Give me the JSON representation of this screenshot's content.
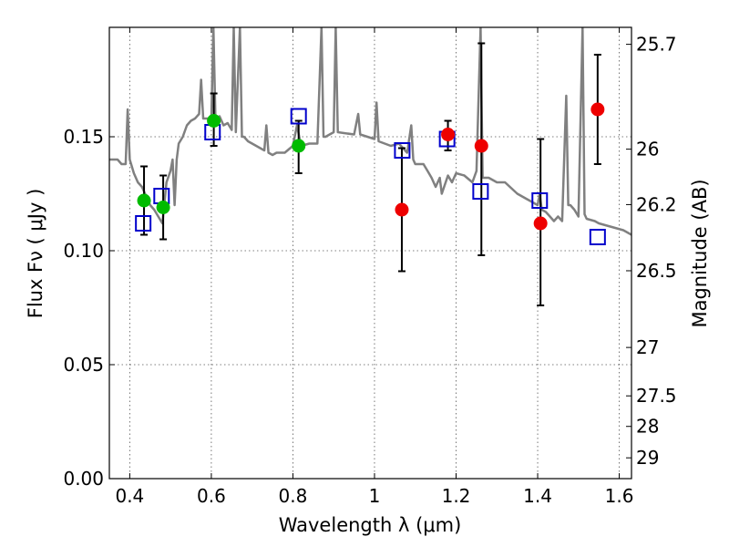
{
  "chart_data": {
    "type": "scatter",
    "xlabel": "Wavelength  λ (μm)",
    "ylabel": "Flux  Fν  ( μJy )",
    "ylabel_right": "Magnitude (AB)",
    "xlim": [
      0.35,
      1.63
    ],
    "ylim": [
      0.0,
      0.198
    ],
    "xticks": [
      {
        "value": 0.4,
        "label": "0.4"
      },
      {
        "value": 0.6,
        "label": "0.6"
      },
      {
        "value": 0.8,
        "label": "0.8"
      },
      {
        "value": 1.0,
        "label": "1"
      },
      {
        "value": 1.2,
        "label": "1.2"
      },
      {
        "value": 1.4,
        "label": "1.4"
      },
      {
        "value": 1.6,
        "label": "1.6"
      }
    ],
    "yticks": [
      {
        "value": 0.0,
        "label": "0.00"
      },
      {
        "value": 0.05,
        "label": "0.05"
      },
      {
        "value": 0.1,
        "label": "0.10"
      },
      {
        "value": 0.15,
        "label": "0.15"
      }
    ],
    "mag_ticks": [
      {
        "value": 25.7,
        "label": "25.7"
      },
      {
        "value": 26.0,
        "label": "26"
      },
      {
        "value": 26.2,
        "label": "26.2"
      },
      {
        "value": 26.5,
        "label": "26.5"
      },
      {
        "value": 27.0,
        "label": "27"
      },
      {
        "value": 27.5,
        "label": "27.5"
      },
      {
        "value": 28.0,
        "label": "28"
      },
      {
        "value": 29.0,
        "label": "29"
      }
    ],
    "grid": true,
    "colors": {
      "model": "#808080",
      "green_points": "#00bb00",
      "red_points": "#ee0000",
      "squares": "#0000cc",
      "errorbars": "#000000"
    },
    "series": [
      {
        "name": "observed-green",
        "marker": "circle",
        "points": [
          {
            "x": 0.435,
            "y": 0.122,
            "ylo": 0.107,
            "yhi": 0.137
          },
          {
            "x": 0.482,
            "y": 0.119,
            "ylo": 0.105,
            "yhi": 0.133
          },
          {
            "x": 0.606,
            "y": 0.157,
            "ylo": 0.146,
            "yhi": 0.169
          },
          {
            "x": 0.814,
            "y": 0.146,
            "ylo": 0.134,
            "yhi": 0.157
          }
        ]
      },
      {
        "name": "observed-red",
        "marker": "circle",
        "points": [
          {
            "x": 1.067,
            "y": 0.118,
            "ylo": 0.091,
            "yhi": 0.145
          },
          {
            "x": 1.18,
            "y": 0.151,
            "ylo": 0.144,
            "yhi": 0.157
          },
          {
            "x": 1.262,
            "y": 0.146,
            "ylo": 0.098,
            "yhi": 0.191
          },
          {
            "x": 1.407,
            "y": 0.112,
            "ylo": 0.076,
            "yhi": 0.149
          },
          {
            "x": 1.547,
            "y": 0.162,
            "ylo": 0.138,
            "yhi": 0.186
          }
        ]
      },
      {
        "name": "model-photometry",
        "marker": "square-open",
        "points": [
          {
            "x": 0.433,
            "y": 0.112
          },
          {
            "x": 0.478,
            "y": 0.124
          },
          {
            "x": 0.603,
            "y": 0.152
          },
          {
            "x": 0.814,
            "y": 0.159
          },
          {
            "x": 1.068,
            "y": 0.144
          },
          {
            "x": 1.178,
            "y": 0.149
          },
          {
            "x": 1.26,
            "y": 0.126
          },
          {
            "x": 1.405,
            "y": 0.122
          },
          {
            "x": 1.547,
            "y": 0.106
          }
        ]
      },
      {
        "name": "model-spectrum",
        "type": "line",
        "points": [
          [
            0.35,
            0.14
          ],
          [
            0.37,
            0.14
          ],
          [
            0.38,
            0.138
          ],
          [
            0.39,
            0.138
          ],
          [
            0.395,
            0.162
          ],
          [
            0.4,
            0.14
          ],
          [
            0.41,
            0.134
          ],
          [
            0.42,
            0.13
          ],
          [
            0.43,
            0.128
          ],
          [
            0.44,
            0.124
          ],
          [
            0.45,
            0.12
          ],
          [
            0.46,
            0.118
          ],
          [
            0.47,
            0.115
          ],
          [
            0.48,
            0.112
          ],
          [
            0.49,
            0.13
          ],
          [
            0.5,
            0.135
          ],
          [
            0.505,
            0.14
          ],
          [
            0.51,
            0.12
          ],
          [
            0.515,
            0.14
          ],
          [
            0.52,
            0.147
          ],
          [
            0.53,
            0.15
          ],
          [
            0.54,
            0.155
          ],
          [
            0.55,
            0.157
          ],
          [
            0.56,
            0.158
          ],
          [
            0.57,
            0.16
          ],
          [
            0.575,
            0.175
          ],
          [
            0.58,
            0.158
          ],
          [
            0.59,
            0.158
          ],
          [
            0.6,
            0.157
          ],
          [
            0.605,
            0.198
          ],
          [
            0.61,
            0.158
          ],
          [
            0.62,
            0.159
          ],
          [
            0.63,
            0.155
          ],
          [
            0.64,
            0.156
          ],
          [
            0.65,
            0.153
          ],
          [
            0.655,
            0.198
          ],
          [
            0.66,
            0.152
          ],
          [
            0.67,
            0.198
          ],
          [
            0.675,
            0.15
          ],
          [
            0.68,
            0.15
          ],
          [
            0.69,
            0.148
          ],
          [
            0.7,
            0.147
          ],
          [
            0.72,
            0.145
          ],
          [
            0.73,
            0.144
          ],
          [
            0.735,
            0.155
          ],
          [
            0.74,
            0.143
          ],
          [
            0.75,
            0.142
          ],
          [
            0.76,
            0.143
          ],
          [
            0.78,
            0.143
          ],
          [
            0.8,
            0.146
          ],
          [
            0.81,
            0.155
          ],
          [
            0.82,
            0.146
          ],
          [
            0.84,
            0.147
          ],
          [
            0.86,
            0.147
          ],
          [
            0.87,
            0.198
          ],
          [
            0.875,
            0.15
          ],
          [
            0.88,
            0.15
          ],
          [
            0.9,
            0.152
          ],
          [
            0.905,
            0.198
          ],
          [
            0.91,
            0.152
          ],
          [
            0.95,
            0.151
          ],
          [
            0.96,
            0.16
          ],
          [
            0.965,
            0.151
          ],
          [
            1.0,
            0.149
          ],
          [
            1.005,
            0.165
          ],
          [
            1.01,
            0.148
          ],
          [
            1.04,
            0.146
          ],
          [
            1.06,
            0.147
          ],
          [
            1.07,
            0.145
          ],
          [
            1.08,
            0.143
          ],
          [
            1.09,
            0.155
          ],
          [
            1.095,
            0.14
          ],
          [
            1.1,
            0.138
          ],
          [
            1.12,
            0.138
          ],
          [
            1.13,
            0.135
          ],
          [
            1.14,
            0.132
          ],
          [
            1.15,
            0.128
          ],
          [
            1.16,
            0.132
          ],
          [
            1.165,
            0.125
          ],
          [
            1.18,
            0.133
          ],
          [
            1.19,
            0.13
          ],
          [
            1.2,
            0.134
          ],
          [
            1.22,
            0.133
          ],
          [
            1.24,
            0.13
          ],
          [
            1.25,
            0.135
          ],
          [
            1.26,
            0.198
          ],
          [
            1.265,
            0.132
          ],
          [
            1.28,
            0.132
          ],
          [
            1.3,
            0.13
          ],
          [
            1.32,
            0.13
          ],
          [
            1.35,
            0.125
          ],
          [
            1.37,
            0.123
          ],
          [
            1.38,
            0.122
          ],
          [
            1.4,
            0.12
          ],
          [
            1.405,
            0.125
          ],
          [
            1.41,
            0.118
          ],
          [
            1.42,
            0.117
          ],
          [
            1.43,
            0.115
          ],
          [
            1.44,
            0.113
          ],
          [
            1.45,
            0.115
          ],
          [
            1.46,
            0.113
          ],
          [
            1.47,
            0.168
          ],
          [
            1.475,
            0.12
          ],
          [
            1.48,
            0.12
          ],
          [
            1.49,
            0.118
          ],
          [
            1.5,
            0.115
          ],
          [
            1.51,
            0.198
          ],
          [
            1.515,
            0.116
          ],
          [
            1.52,
            0.114
          ],
          [
            1.54,
            0.113
          ],
          [
            1.55,
            0.112
          ],
          [
            1.57,
            0.111
          ],
          [
            1.59,
            0.11
          ],
          [
            1.61,
            0.109
          ],
          [
            1.63,
            0.107
          ]
        ]
      }
    ]
  }
}
